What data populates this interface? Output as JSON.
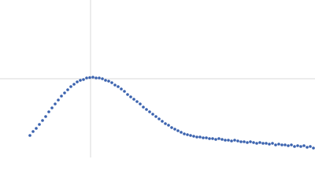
{
  "chart_data": {
    "type": "scatter",
    "x": [
      38,
      42,
      46,
      50,
      54,
      58,
      62,
      66,
      70,
      74,
      78,
      82,
      86,
      90,
      94,
      98,
      102,
      106,
      110,
      114,
      118,
      122,
      126,
      130,
      134,
      138,
      142,
      146,
      150,
      154,
      158,
      162,
      166,
      170,
      174,
      178,
      182,
      186,
      190,
      194,
      198,
      202,
      206,
      210,
      214,
      218,
      222,
      226,
      230,
      234,
      238,
      242,
      246,
      250,
      254,
      258,
      262,
      266,
      270,
      274,
      278,
      282,
      286,
      290,
      294,
      298,
      302,
      306,
      310,
      314,
      318,
      322,
      326,
      330,
      334,
      338,
      342,
      346,
      350,
      354,
      358,
      362,
      366,
      370,
      374,
      378,
      382,
      386,
      390,
      394,
      398
    ],
    "values": [
      28,
      33,
      37,
      42,
      47,
      52,
      58,
      63,
      68,
      73,
      78,
      82,
      86,
      90,
      93,
      96,
      98,
      99,
      101,
      101.5,
      102,
      101,
      101,
      100,
      98,
      97,
      95,
      92,
      90,
      87,
      84,
      80,
      77,
      74,
      71,
      68,
      64,
      61,
      58,
      55,
      52,
      49,
      46,
      43,
      41,
      38,
      36,
      34,
      32,
      30,
      29,
      28,
      27,
      26,
      26,
      25,
      25,
      24,
      24,
      23,
      24,
      23,
      22,
      22,
      21,
      22,
      21,
      20,
      20,
      19,
      20,
      19,
      18,
      19,
      18,
      18,
      17,
      18,
      16,
      17,
      16,
      16,
      15,
      16,
      14,
      15,
      14,
      15,
      13,
      14,
      12
    ],
    "color": "#3a62ae",
    "xlim": [
      0,
      400
    ],
    "ylim": [
      0,
      200
    ],
    "xticks": [
      115
    ],
    "yticks": [
      100
    ],
    "grid": true
  }
}
